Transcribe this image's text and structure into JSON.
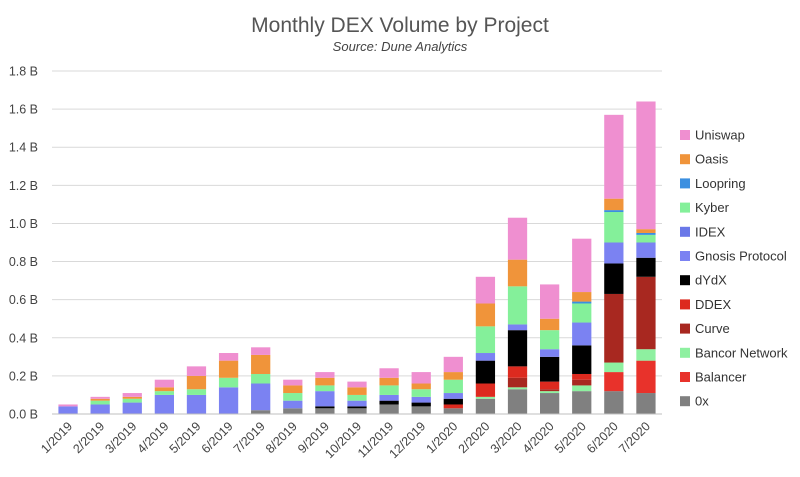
{
  "chart_data": {
    "type": "bar",
    "stacked": true,
    "title": "Monthly DEX Volume by Project",
    "subtitle": "Source: Dune Analytics",
    "xlabel": "",
    "ylabel": "",
    "ylim": [
      0,
      1.8
    ],
    "yticks": [
      0.0,
      0.2,
      0.4,
      0.6,
      0.8,
      1.0,
      1.2,
      1.4,
      1.6,
      1.8
    ],
    "ytick_labels": [
      "0.0 B",
      "0.2 B",
      "0.4 B",
      "0.6 B",
      "0.8 B",
      "1.0 B",
      "1.2 B",
      "1.4 B",
      "1.6 B",
      "1.8 B"
    ],
    "grid": true,
    "legend_position": "right",
    "categories": [
      "1/2019",
      "2/2019",
      "3/2019",
      "4/2019",
      "5/2019",
      "6/2019",
      "7/2019",
      "8/2019",
      "9/2019",
      "10/2019",
      "11/2019",
      "12/2019",
      "1/2020",
      "2/2020",
      "3/2020",
      "4/2020",
      "5/2020",
      "6/2020",
      "7/2020"
    ],
    "series": [
      {
        "name": "0x",
        "color": "#808080",
        "values": [
          0.0,
          0.0,
          0.0,
          0.0,
          0.0,
          0.0,
          0.02,
          0.03,
          0.03,
          0.03,
          0.05,
          0.04,
          0.03,
          0.08,
          0.13,
          0.11,
          0.12,
          0.12,
          0.11
        ]
      },
      {
        "name": "Balancer",
        "color": "#e8322b",
        "values": [
          0,
          0,
          0,
          0,
          0,
          0,
          0,
          0,
          0,
          0,
          0,
          0,
          0,
          0,
          0,
          0,
          0,
          0.1,
          0.17
        ]
      },
      {
        "name": "Bancor Network",
        "color": "#8ef0a0",
        "values": [
          0,
          0,
          0,
          0,
          0,
          0,
          0,
          0,
          0,
          0,
          0,
          0,
          0,
          0.01,
          0.01,
          0.01,
          0.03,
          0.05,
          0.06
        ]
      },
      {
        "name": "Curve",
        "color": "#a82820",
        "values": [
          0,
          0,
          0,
          0,
          0,
          0,
          0,
          0,
          0,
          0,
          0,
          0,
          0,
          0,
          0.05,
          0.01,
          0.03,
          0.36,
          0.38
        ]
      },
      {
        "name": "DDEX",
        "color": "#dd2a1f",
        "values": [
          0,
          0,
          0,
          0,
          0,
          0,
          0,
          0,
          0,
          0,
          0,
          0,
          0.02,
          0.07,
          0.06,
          0.04,
          0.03,
          0,
          0
        ]
      },
      {
        "name": "dYdX",
        "color": "#000000",
        "values": [
          0,
          0,
          0,
          0,
          0,
          0,
          0,
          0.0,
          0.01,
          0.01,
          0.02,
          0.02,
          0.03,
          0.12,
          0.19,
          0.13,
          0.15,
          0.16,
          0.1
        ]
      },
      {
        "name": "Gnosis Protocol",
        "color": "#7b82f2",
        "values": [
          0.04,
          0.05,
          0.06,
          0.1,
          0.1,
          0.14,
          0.14,
          0.04,
          0.08,
          0.03,
          0.03,
          0.03,
          0.03,
          0.04,
          0.03,
          0.04,
          0.12,
          0.11,
          0.08
        ]
      },
      {
        "name": "IDEX",
        "color": "#6a78e8",
        "values": [
          0,
          0,
          0,
          0,
          0,
          0,
          0,
          0,
          0,
          0,
          0,
          0,
          0,
          0,
          0,
          0,
          0,
          0,
          0
        ]
      },
      {
        "name": "Kyber",
        "color": "#84f09a",
        "values": [
          0.0,
          0.02,
          0.02,
          0.02,
          0.03,
          0.05,
          0.05,
          0.04,
          0.03,
          0.03,
          0.05,
          0.04,
          0.07,
          0.14,
          0.2,
          0.1,
          0.1,
          0.16,
          0.04
        ]
      },
      {
        "name": "Loopring",
        "color": "#3b8fe0",
        "values": [
          0,
          0,
          0,
          0,
          0,
          0,
          0,
          0,
          0,
          0,
          0,
          0,
          0,
          0,
          0,
          0,
          0.01,
          0.01,
          0.01
        ]
      },
      {
        "name": "Oasis",
        "color": "#f0943a",
        "values": [
          0.0,
          0.01,
          0.01,
          0.02,
          0.07,
          0.09,
          0.1,
          0.04,
          0.04,
          0.04,
          0.04,
          0.03,
          0.04,
          0.12,
          0.14,
          0.06,
          0.05,
          0.06,
          0.02
        ]
      },
      {
        "name": "Uniswap",
        "color": "#ef8fd0",
        "values": [
          0.01,
          0.01,
          0.02,
          0.04,
          0.05,
          0.04,
          0.04,
          0.03,
          0.03,
          0.03,
          0.05,
          0.06,
          0.08,
          0.14,
          0.22,
          0.18,
          0.28,
          0.44,
          0.67
        ]
      }
    ]
  }
}
